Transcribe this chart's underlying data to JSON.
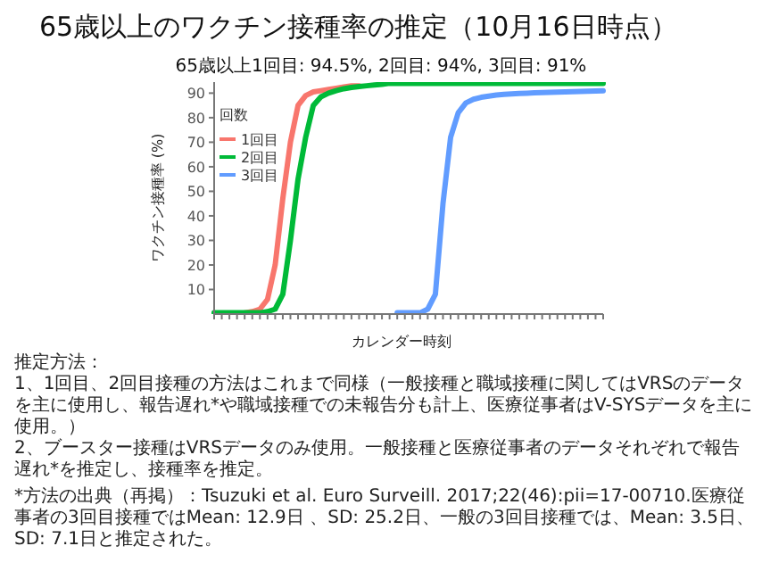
{
  "chart_data": {
    "type": "line",
    "title": "65歳以上のワクチン接種率の推定（10月16日時点）",
    "subtitle": "65歳以上1回目: 94.5%, 2回目: 94%, 3回目: 91%",
    "xlabel": "カレンダー時刻",
    "ylabel": "ワクチン接種率 (%)",
    "legend_title": "回数",
    "legend": "top left",
    "grid": false,
    "marker": "none",
    "line_style": "solid",
    "ylim": [
      0,
      94.5
    ],
    "yticks": [
      10,
      20,
      30,
      40,
      50,
      60,
      70,
      80,
      90
    ],
    "categories": [
      null,
      null,
      null,
      null,
      null,
      null,
      null,
      null,
      null,
      null,
      null,
      null,
      null,
      null,
      null,
      null,
      null,
      null,
      null,
      null,
      null,
      null,
      null,
      null,
      null,
      null,
      null,
      null,
      null,
      null,
      null,
      null,
      null,
      null,
      null,
      null,
      null,
      null,
      null,
      null,
      null,
      null,
      null,
      null,
      null,
      null,
      null,
      null,
      null,
      null,
      null,
      null
    ],
    "series": [
      {
        "name": "1回目",
        "color": "#f8766d",
        "values": [
          null,
          null,
          null,
          null,
          0.5,
          1,
          2,
          6,
          20,
          47,
          70,
          85,
          89,
          90.5,
          91,
          91.5,
          92,
          92.5,
          93,
          93,
          null,
          null,
          null,
          null,
          null,
          null,
          null,
          null,
          null,
          null,
          null,
          null,
          null,
          null,
          null,
          null,
          null,
          null,
          null,
          null,
          null,
          null,
          null,
          null,
          null,
          null,
          null,
          null,
          null,
          null,
          null,
          null
        ]
      },
      {
        "name": "2回目",
        "color": "#00ba38",
        "values": [
          0.5,
          0.5,
          0.5,
          0.5,
          0.5,
          0.5,
          0.5,
          1,
          2,
          8,
          30,
          55,
          72,
          85,
          88.5,
          90,
          91,
          91.8,
          92.3,
          92.7,
          93,
          93.3,
          93.6,
          94,
          94,
          94,
          94,
          94,
          94,
          94,
          94,
          94,
          94,
          94,
          94,
          94,
          94,
          94,
          94,
          94,
          94,
          94,
          94,
          94,
          94,
          94,
          94,
          94,
          94,
          94,
          94,
          94
        ]
      },
      {
        "name": "3回目",
        "color": "#619cff",
        "values": [
          null,
          null,
          null,
          null,
          null,
          null,
          null,
          null,
          null,
          null,
          null,
          null,
          null,
          null,
          null,
          null,
          null,
          null,
          null,
          null,
          null,
          null,
          null,
          null,
          0.5,
          0.5,
          0.5,
          0.5,
          2,
          8,
          45,
          72,
          82,
          86,
          87.5,
          88.3,
          88.8,
          89.2,
          89.5,
          89.7,
          89.9,
          90,
          90.1,
          90.2,
          90.3,
          90.4,
          90.5,
          90.6,
          90.7,
          90.8,
          90.9,
          91
        ]
      }
    ],
    "annotations": [
      "推定方法：",
      "1、1回目、2回目接種の方法はこれまで同様（一般接種と職域接種に関してはVRSのデータを主に使用し、報告遅れ*や職域接種での未報告分も計上、医療従事者はV-SYSデータを主に使用。）",
      "2、ブースター接種はVRSデータのみ使用。一般接種と医療従事者のデータそれぞれで報告遅れ*を推定し、接種率を推定。",
      "*方法の出典（再掲）：Tsuzuki et al. Euro Surveill. 2017;22(46):pii=17-00710.医療従事者の3回目接種ではMean: 12.9日 、SD: 25.2日、一般の3回目接種では、Mean: 3.5日、SD: 7.1日と推定された。"
    ]
  }
}
